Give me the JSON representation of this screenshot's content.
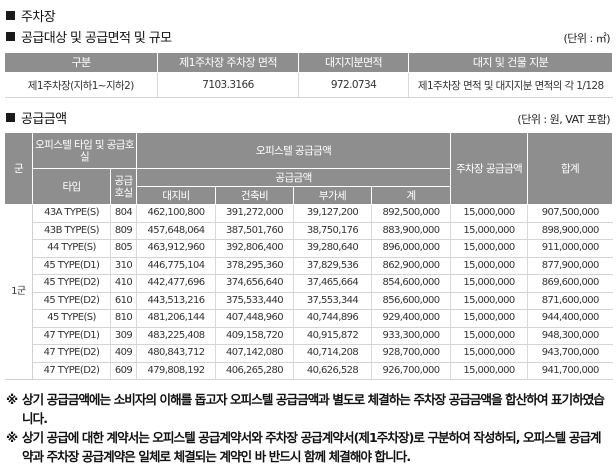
{
  "section_parking": {
    "title": "주차장"
  },
  "section_supply": {
    "title": "공급대상 및 공급면적 및 규모",
    "unit": "(단위 : ㎡)"
  },
  "table_area": {
    "headers": [
      "구분",
      "제1주차장 주차장 면적",
      "대지지분면적",
      "대지 및 건물 지분"
    ],
    "row": [
      "제1주차장(지하1~지하2)",
      "7103.3166",
      "972.0734",
      "제1주차장 면적 및 대지지분 면적의 각 1/128"
    ]
  },
  "section_price": {
    "title": "공급금액",
    "unit": "(단위 : 원, VAT 포함)"
  },
  "table_price": {
    "h_gun": "군",
    "h_type_group": "오피스텔 타입 및 공급호실",
    "h_officetel_price": "오피스텔 공급금액",
    "h_parking_price": "주차장 공급금액",
    "h_total": "합계",
    "h_type": "타입",
    "h_units": "공급 호실",
    "h_supply": "공급금액",
    "h_land": "대지비",
    "h_building": "건축비",
    "h_vat": "부가세",
    "h_sum": "계",
    "gun_value": "1군",
    "rows": [
      [
        "43A  TYPE(S)",
        "804",
        "462,100,800",
        "391,272,000",
        "39,127,200",
        "892,500,000",
        "15,000,000",
        "907,500,000"
      ],
      [
        "43B  TYPE(S)",
        "809",
        "457,648,064",
        "387,501,760",
        "38,750,176",
        "883,900,000",
        "15,000,000",
        "898,900,000"
      ],
      [
        "44  TYPE(S)",
        "805",
        "463,912,960",
        "392,806,400",
        "39,280,640",
        "896,000,000",
        "15,000,000",
        "911,000,000"
      ],
      [
        "45  TYPE(D1)",
        "310",
        "446,775,104",
        "378,295,360",
        "37,829,536",
        "862,900,000",
        "15,000,000",
        "877,900,000"
      ],
      [
        "45  TYPE(D2)",
        "410",
        "442,477,696",
        "374,656,640",
        "37,465,664",
        "854,600,000",
        "15,000,000",
        "869,600,000"
      ],
      [
        "45  TYPE(D2)",
        "610",
        "443,513,216",
        "375,533,440",
        "37,553,344",
        "856,600,000",
        "15,000,000",
        "871,600,000"
      ],
      [
        "45  TYPE(S)",
        "810",
        "481,206,144",
        "407,448,960",
        "40,744,896",
        "929,400,000",
        "15,000,000",
        "944,400,000"
      ],
      [
        "47  TYPE(D1)",
        "309",
        "483,225,408",
        "409,158,720",
        "40,915,872",
        "933,300,000",
        "15,000,000",
        "948,300,000"
      ],
      [
        "47  TYPE(D2)",
        "409",
        "480,843,712",
        "407,142,080",
        "40,714,208",
        "928,700,000",
        "15,000,000",
        "943,700,000"
      ],
      [
        "47  TYPE(D2)",
        "609",
        "479,808,192",
        "406,265,280",
        "40,626,528",
        "926,700,000",
        "15,000,000",
        "941,700,000"
      ]
    ]
  },
  "notes": [
    {
      "mark": "※",
      "text": "상기 공급금액에는 소비자의 이해를 돕고자 오피스텔 공급금액과 별도로 체결하는 주차장 공급금액을 합산하여 표기하였습니다."
    },
    {
      "mark": "※",
      "text": "상기 공급에 대한 계약서는 오피스텔 공급계약서와 주차장 공급계약서(제1주차장)로 구분하여 작성하되, 오피스텔 공급계약과 주차장 공급계약은 일체로 체결되는 계약인 바 반드시 함께 체결해야 합니다."
    }
  ]
}
